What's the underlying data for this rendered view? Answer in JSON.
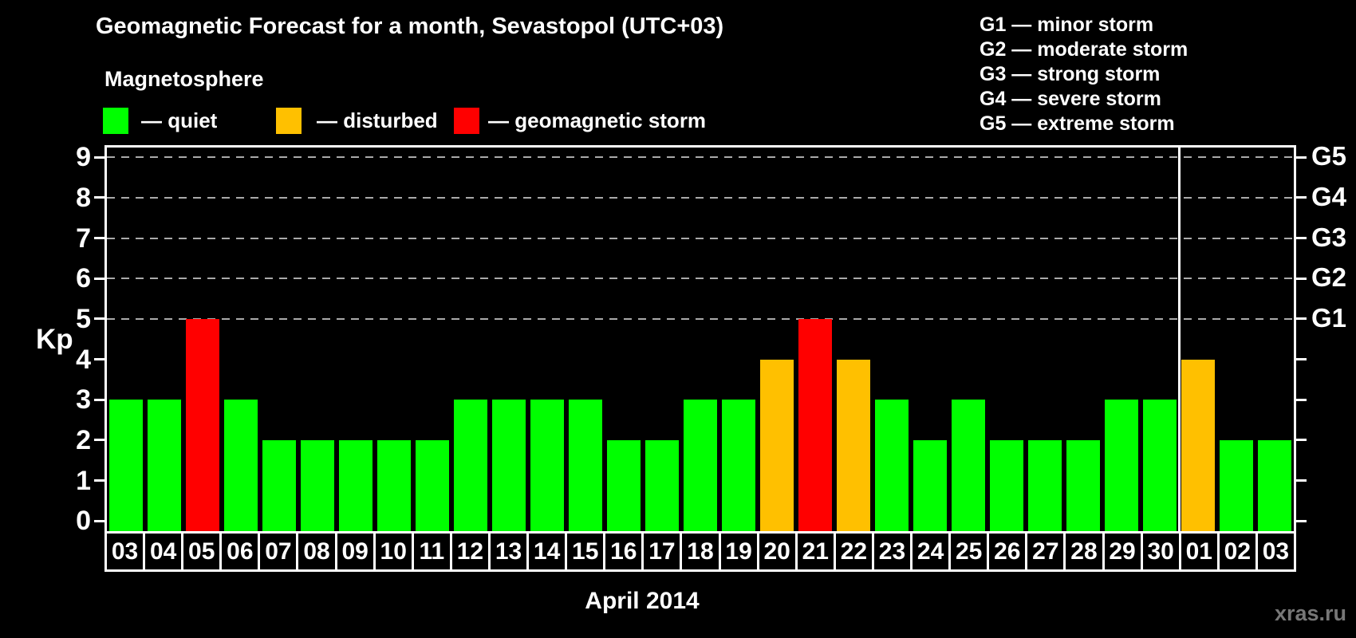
{
  "header": {
    "title": "Geomagnetic Forecast for a month, Sevastopol (UTC+03)",
    "subtitle": "Magnetosphere"
  },
  "legend": {
    "items": [
      {
        "key": "quiet",
        "label": "— quiet",
        "color": "#00ff00"
      },
      {
        "key": "disturbed",
        "label": "— disturbed",
        "color": "#ffc000"
      },
      {
        "key": "storm",
        "label": "— geomagnetic storm",
        "color": "#ff0000"
      }
    ]
  },
  "g_legend": {
    "items": [
      "G1 — minor storm",
      "G2 — moderate storm",
      "G3 — strong storm",
      "G4 — severe storm",
      "G5 — extreme storm"
    ]
  },
  "axis": {
    "y_label": "Kp",
    "y_ticks": [
      0,
      1,
      2,
      3,
      4,
      5,
      6,
      7,
      8,
      9
    ],
    "right_labels": [
      {
        "label": "G1",
        "kp": 5
      },
      {
        "label": "G2",
        "kp": 6
      },
      {
        "label": "G3",
        "kp": 7
      },
      {
        "label": "G4",
        "kp": 8
      },
      {
        "label": "G5",
        "kp": 9
      }
    ]
  },
  "chart_data": {
    "type": "bar",
    "title": "Geomagnetic Forecast for a month, Sevastopol (UTC+03)",
    "xlabel": "April 2014",
    "ylabel": "Kp",
    "ylim": [
      0,
      9
    ],
    "grid": "dashed horizontal lines at Kp 5-9 (G1-G5 levels)",
    "categories": [
      "03",
      "04",
      "05",
      "06",
      "07",
      "08",
      "09",
      "10",
      "11",
      "12",
      "13",
      "14",
      "15",
      "16",
      "17",
      "18",
      "19",
      "20",
      "21",
      "22",
      "23",
      "24",
      "25",
      "26",
      "27",
      "28",
      "29",
      "30",
      "01",
      "02",
      "03"
    ],
    "values": [
      3,
      3,
      5,
      3,
      2,
      2,
      2,
      2,
      2,
      3,
      3,
      3,
      3,
      2,
      2,
      3,
      3,
      4,
      5,
      4,
      3,
      2,
      3,
      2,
      2,
      2,
      3,
      3,
      4,
      2,
      2
    ],
    "month_separator_after_index": 27,
    "colors": {
      "quiet": "#00ff00",
      "disturbed": "#ffc000",
      "storm": "#ff0000"
    },
    "thresholds": {
      "disturbed_min": 4,
      "storm_min": 5
    }
  },
  "footer": {
    "x_axis_title": "April 2014",
    "watermark": "xras.ru"
  }
}
